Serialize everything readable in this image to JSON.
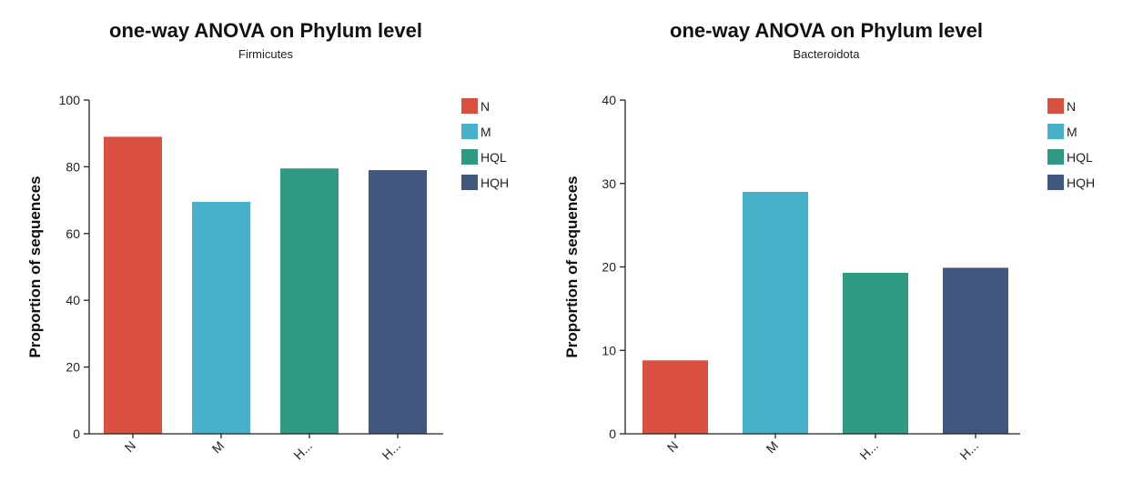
{
  "chart_data": [
    {
      "type": "bar",
      "title": "one-way ANOVA on Phylum level",
      "subtitle": "Firmicutes",
      "ylabel": "Proportion of sequences",
      "ylim": [
        0,
        100
      ],
      "yticks": [
        0,
        20,
        40,
        60,
        80,
        100
      ],
      "categories": [
        "N",
        "M",
        "H...",
        "H..."
      ],
      "values": [
        89,
        69.5,
        79.5,
        79
      ],
      "colors": [
        "#d95040",
        "#46b1c9",
        "#2e9a83",
        "#42577f"
      ],
      "legend": {
        "position": "top-right",
        "items": [
          {
            "label": "N",
            "color": "#d95040"
          },
          {
            "label": "M",
            "color": "#46b1c9"
          },
          {
            "label": "HQL",
            "color": "#2e9a83"
          },
          {
            "label": "HQH",
            "color": "#42577f"
          }
        ]
      }
    },
    {
      "type": "bar",
      "title": "one-way ANOVA on Phylum level",
      "subtitle": "Bacteroidota",
      "ylabel": "Proportion of sequences",
      "ylim": [
        0,
        40
      ],
      "yticks": [
        0,
        10,
        20,
        30,
        40
      ],
      "categories": [
        "N",
        "M",
        "H...",
        "H..."
      ],
      "values": [
        8.8,
        29,
        19.3,
        19.9
      ],
      "colors": [
        "#d95040",
        "#46b1c9",
        "#2e9a83",
        "#42577f"
      ],
      "legend": {
        "position": "top-right",
        "items": [
          {
            "label": "N",
            "color": "#d95040"
          },
          {
            "label": "M",
            "color": "#46b1c9"
          },
          {
            "label": "HQL",
            "color": "#2e9a83"
          },
          {
            "label": "HQH",
            "color": "#42577f"
          }
        ]
      }
    }
  ]
}
